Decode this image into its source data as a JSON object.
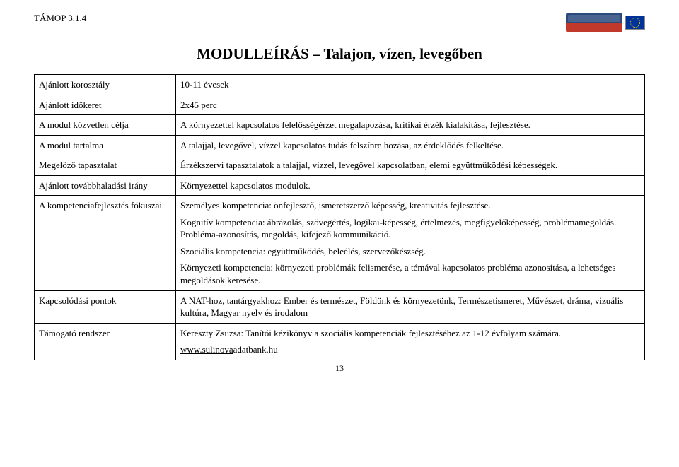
{
  "header": {
    "code": "TÁMOP 3.1.4"
  },
  "title": "MODULLEÍRÁS – Talajon, vízen, levegőben",
  "rows": {
    "r1": {
      "label": "Ajánlott korosztály",
      "value": "10-11 évesek"
    },
    "r2": {
      "label": "Ajánlott időkeret",
      "value": "2x45 perc"
    },
    "r3": {
      "label": "A modul közvetlen célja",
      "value": "A környezettel kapcsolatos felelősségérzet megalapozása, kritikai érzék kialakítása, fejlesztése."
    },
    "r4": {
      "label": "A modul tartalma",
      "value": "A talajjal, levegővel, vízzel kapcsolatos tudás felszínre hozása, az érdeklődés felkeltése."
    },
    "r5": {
      "label": "Megelőző tapasztalat",
      "value": "Érzékszervi tapasztalatok a talajjal, vízzel, levegővel kapcsolatban, elemi együttműködési képességek."
    },
    "r6": {
      "label": "Ajánlott továbbhaladási irány",
      "value": "Környezettel kapcsolatos modulok."
    },
    "r7": {
      "label": "A kompetenciafejlesztés fókuszai",
      "p1": "Személyes kompetencia: önfejlesztő, ismeretszerző képesség, kreativitás fejlesztése.",
      "p2": "Kognitív kompetencia: ábrázolás, szövegértés, logikai-képesség, értelmezés, megfigyelőképesség, problémamegoldás. Probléma-azonosítás, megoldás, kifejező kommunikáció.",
      "p3": "Szociális kompetencia: együttműködés, beleélés, szervezőkészség.",
      "p4": "Környezeti kompetencia: környezeti problémák felismerése, a témával kapcsolatos probléma azonosítása, a lehetséges megoldások keresése."
    },
    "r8": {
      "label": "Kapcsolódási pontok",
      "value": "A NAT-hoz, tantárgyakhoz: Ember és természet, Földünk és környezetünk, Természetismeret, Művészet, dráma, vizuális kultúra, Magyar nyelv és irodalom"
    },
    "r9": {
      "label": "Támogató rendszer",
      "p1": "Kereszty Zsuzsa: Tanítói kézikönyv a szociális kompetenciák fejlesztéséhez az 1-12 évfolyam számára.",
      "link_text": "www.sulinova",
      "link_suffix": "adatbank.hu"
    }
  },
  "page_number": "13",
  "colors": {
    "text": "#000000",
    "background": "#ffffff",
    "border": "#000000"
  },
  "fonts": {
    "body_family": "Times New Roman",
    "body_size_pt": 10,
    "title_size_pt": 16
  }
}
